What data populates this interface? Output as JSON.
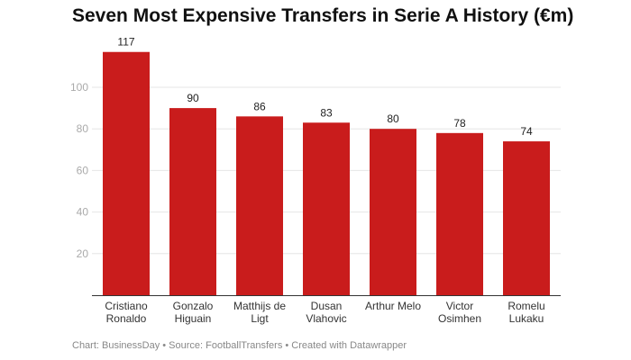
{
  "chart_data": {
    "type": "bar",
    "title": "Seven Most Expensive Transfers in Serie A History (€m)",
    "categories": [
      [
        "Cristiano",
        "Ronaldo"
      ],
      [
        "Gonzalo",
        "Higuain"
      ],
      [
        "Matthijs de",
        "Ligt"
      ],
      [
        "Dusan",
        "Vlahovic"
      ],
      [
        "Arthur Melo"
      ],
      [
        "Victor",
        "Osimhen"
      ],
      [
        "Romelu",
        "Lukaku"
      ]
    ],
    "values": [
      117,
      90,
      86,
      83,
      80,
      78,
      74
    ],
    "ylim": [
      0,
      120
    ],
    "yticks": [
      20,
      40,
      60,
      80,
      100
    ],
    "grid": true,
    "bar_color": "#c91c1c",
    "footer": "Chart: BusinessDay • Source: FootballTransfers • Created with Datawrapper"
  }
}
